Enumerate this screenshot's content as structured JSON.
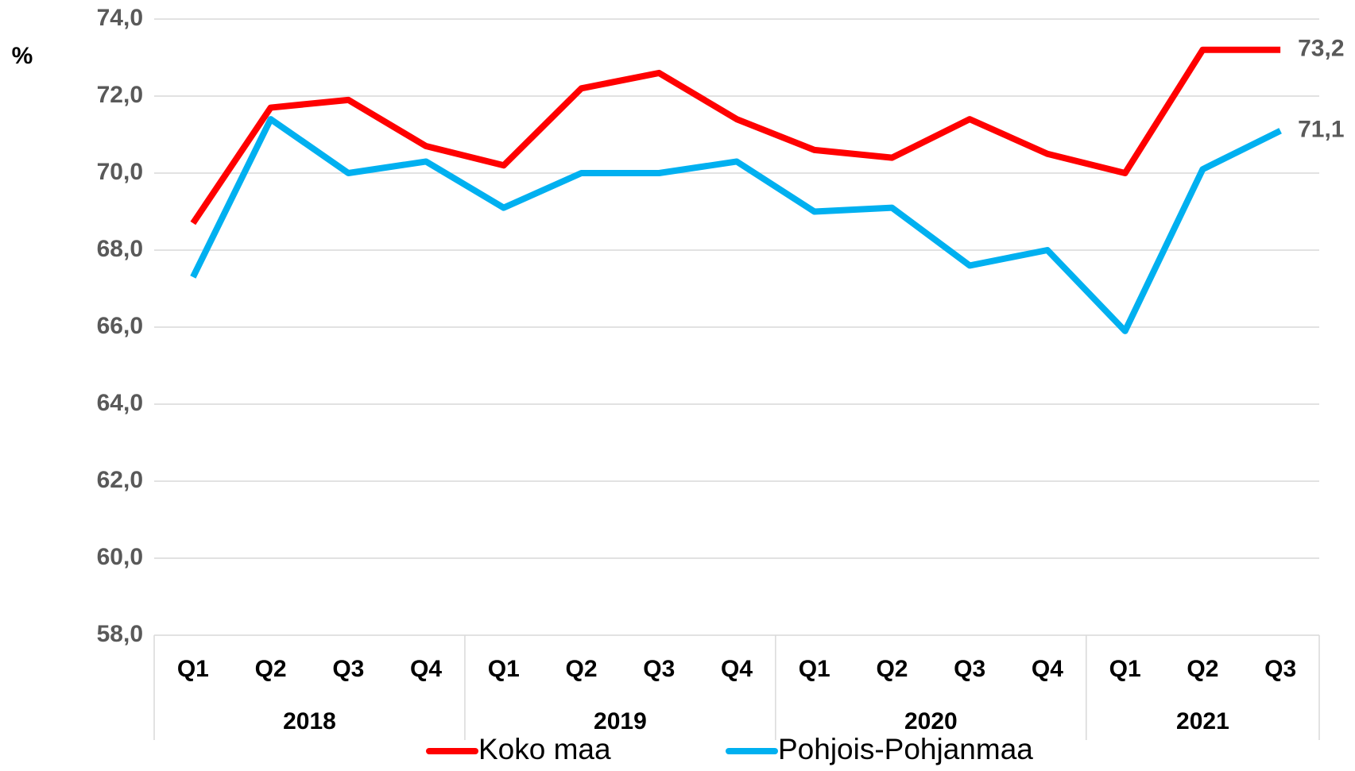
{
  "chart_data": {
    "type": "line",
    "ylabel": "%",
    "categories": [
      "Q1",
      "Q2",
      "Q3",
      "Q4",
      "Q1",
      "Q2",
      "Q3",
      "Q4",
      "Q1",
      "Q2",
      "Q3",
      "Q4",
      "Q1",
      "Q2",
      "Q3"
    ],
    "groups": [
      {
        "label": "2018",
        "count": 4
      },
      {
        "label": "2019",
        "count": 4
      },
      {
        "label": "2020",
        "count": 4
      },
      {
        "label": "2021",
        "count": 3
      }
    ],
    "series": [
      {
        "name": "Koko maa",
        "color": "#ff0000",
        "values": [
          68.7,
          71.7,
          71.9,
          70.7,
          70.2,
          72.2,
          72.6,
          71.4,
          70.6,
          70.4,
          71.4,
          70.5,
          70.0,
          73.2,
          73.2
        ],
        "value_labels": [
          null,
          null,
          null,
          null,
          null,
          null,
          null,
          null,
          null,
          null,
          null,
          null,
          null,
          null,
          "73,2"
        ]
      },
      {
        "name": "Pohjois-Pohjanmaa",
        "color": "#00b0f0",
        "values": [
          67.3,
          71.4,
          70.0,
          70.3,
          69.1,
          70.0,
          70.0,
          70.3,
          69.0,
          69.1,
          67.6,
          68.0,
          65.9,
          70.1,
          71.1
        ],
        "value_labels": [
          null,
          null,
          null,
          null,
          null,
          null,
          null,
          null,
          null,
          null,
          null,
          null,
          null,
          null,
          "71,1"
        ]
      }
    ],
    "ylim": [
      58,
      74
    ],
    "yticks": [
      {
        "value": 58,
        "label": "58,0"
      },
      {
        "value": 60,
        "label": "60,0"
      },
      {
        "value": 62,
        "label": "62,0"
      },
      {
        "value": 64,
        "label": "64,0"
      },
      {
        "value": 66,
        "label": "66,0"
      },
      {
        "value": 68,
        "label": "68,0"
      },
      {
        "value": 70,
        "label": "70,0"
      },
      {
        "value": 72,
        "label": "72,0"
      },
      {
        "value": 74,
        "label": "74,0"
      }
    ],
    "grid": true,
    "legend": "bottom"
  }
}
